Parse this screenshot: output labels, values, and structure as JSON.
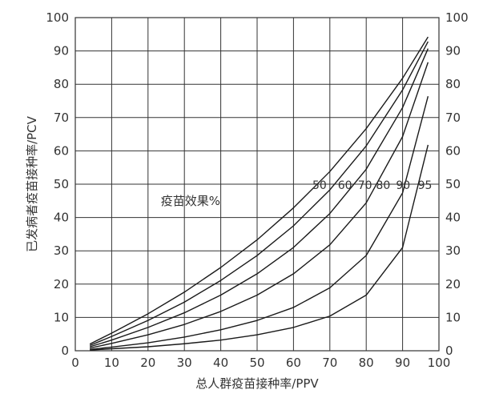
{
  "chart_data": {
    "type": "line",
    "title": "",
    "xlabel": "总人群疫苗接种率/PPV",
    "ylabel": "已发病者疫苗接种率/PCV",
    "xlim": [
      0,
      100
    ],
    "ylim": [
      0,
      100
    ],
    "xticks": [
      0,
      10,
      20,
      30,
      40,
      50,
      60,
      70,
      80,
      90,
      100
    ],
    "yticks": [
      0,
      10,
      20,
      30,
      40,
      50,
      60,
      70,
      80,
      90,
      100
    ],
    "right_axis_ticks": [
      0,
      10,
      20,
      30,
      40,
      50,
      60,
      70,
      80,
      90,
      100
    ],
    "grid": true,
    "annotation": "疫苗效果%",
    "series": [
      {
        "name": "50",
        "x": [
          4,
          10,
          20,
          30,
          40,
          50,
          60,
          70,
          80,
          90,
          97
        ],
        "y": [
          2,
          5.3,
          11.1,
          17.6,
          25,
          33.3,
          42.9,
          53.8,
          66.7,
          81.8,
          94.2
        ]
      },
      {
        "name": "60",
        "x": [
          4,
          10,
          20,
          30,
          40,
          50,
          60,
          70,
          80,
          90,
          97
        ],
        "y": [
          1.6,
          4.3,
          9.1,
          14.6,
          21.1,
          28.6,
          37.5,
          48.3,
          61.5,
          78.3,
          92.8
        ]
      },
      {
        "name": "70",
        "x": [
          4,
          10,
          20,
          30,
          40,
          50,
          60,
          70,
          80,
          90,
          97
        ],
        "y": [
          1.2,
          3.2,
          7,
          11.4,
          16.7,
          23.1,
          31,
          41.2,
          54.5,
          73,
          90.7
        ]
      },
      {
        "name": "80",
        "x": [
          4,
          10,
          20,
          30,
          40,
          50,
          60,
          70,
          80,
          90,
          97
        ],
        "y": [
          0.8,
          2.2,
          4.8,
          7.9,
          11.8,
          16.7,
          23.1,
          31.8,
          44.4,
          64.3,
          86.6
        ]
      },
      {
        "name": "90",
        "x": [
          4,
          10,
          20,
          30,
          40,
          50,
          60,
          70,
          80,
          90,
          97
        ],
        "y": [
          0.4,
          1.1,
          2.4,
          4.1,
          6.3,
          9.1,
          13,
          18.9,
          28.6,
          47.4,
          76.4
        ]
      },
      {
        "name": "95",
        "x": [
          4,
          10,
          20,
          30,
          40,
          50,
          60,
          70,
          80,
          90,
          97
        ],
        "y": [
          0.2,
          0.6,
          1.2,
          2.1,
          3.2,
          4.8,
          7,
          10.4,
          16.7,
          31,
          61.8
        ]
      }
    ]
  }
}
